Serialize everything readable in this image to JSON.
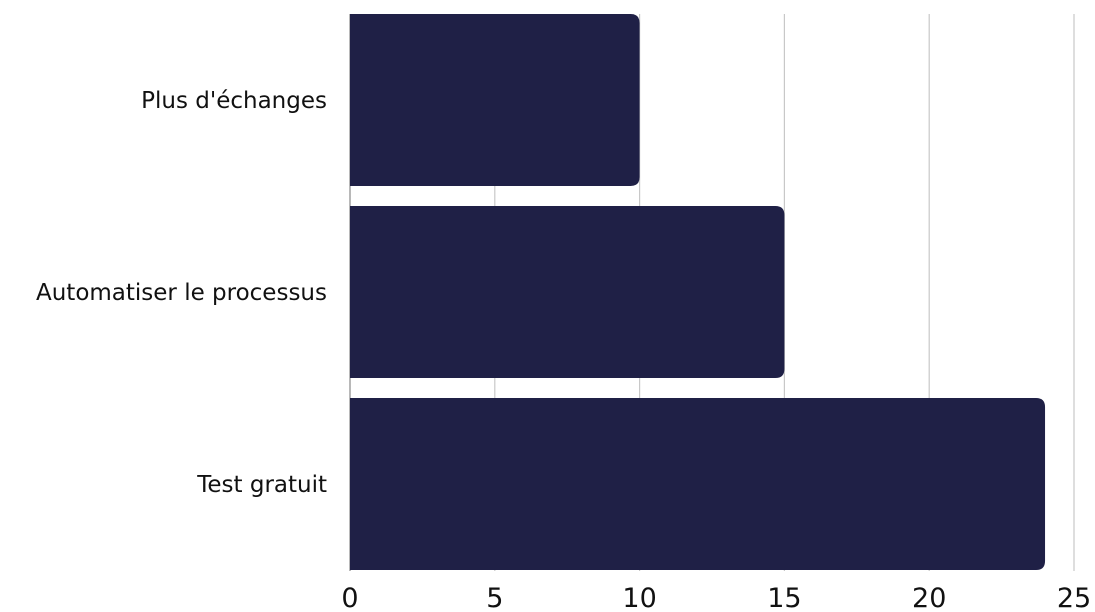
{
  "chart_data": {
    "type": "bar",
    "orientation": "horizontal",
    "title": "",
    "xlabel": "",
    "ylabel": "",
    "categories": [
      "Plus d'échanges",
      "Automatiser le processus",
      "Test gratuit"
    ],
    "values": [
      10,
      15,
      24
    ],
    "xlim": [
      0,
      25
    ],
    "xticks": [
      0,
      5,
      10,
      15,
      20,
      25
    ],
    "grid": "vertical",
    "legend": "none",
    "colors": {
      "bar": "#1f2046",
      "grid": "#c8c8c8",
      "text": "#111111"
    }
  }
}
